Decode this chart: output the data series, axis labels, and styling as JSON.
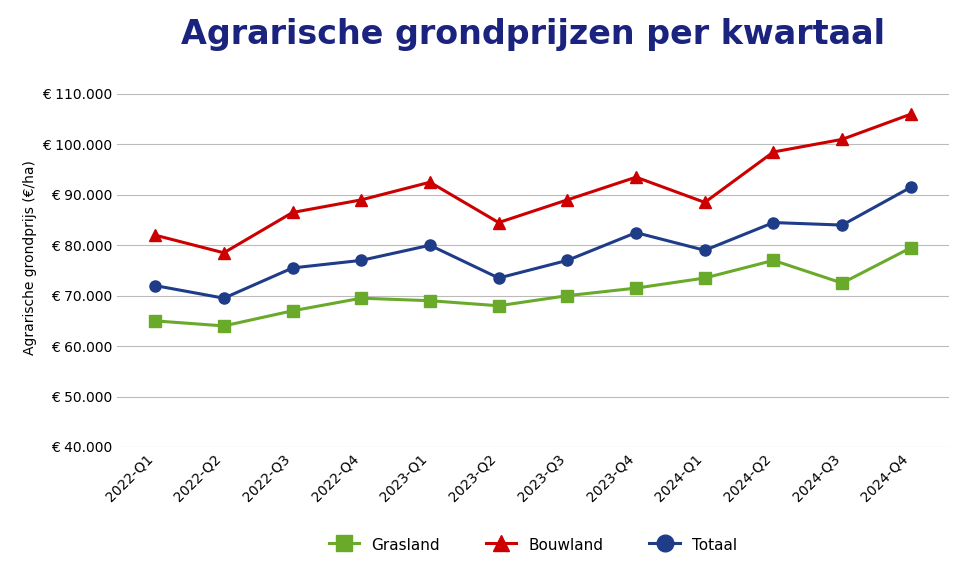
{
  "title": "Agrarische grondprijzen per kwartaal",
  "ylabel": "Agrarische grondprijs (€/ha)",
  "categories": [
    "2022-Q1",
    "2022-Q2",
    "2022-Q3",
    "2022-Q4",
    "2023-Q1",
    "2023-Q2",
    "2023-Q3",
    "2023-Q4",
    "2024-Q1",
    "2024-Q2",
    "2024-Q3",
    "2024-Q4"
  ],
  "grasland": [
    65000,
    64000,
    67000,
    69500,
    69000,
    68000,
    70000,
    71500,
    73500,
    77000,
    72500,
    79500
  ],
  "bouwland": [
    82000,
    78500,
    86500,
    89000,
    92500,
    84500,
    89000,
    93500,
    88500,
    98500,
    101000,
    106000
  ],
  "totaal": [
    72000,
    69500,
    75500,
    77000,
    80000,
    73500,
    77000,
    82500,
    79000,
    84500,
    84000,
    91500
  ],
  "grasland_color": "#6aaa2a",
  "bouwland_color": "#cc0000",
  "totaal_color": "#1f3c88",
  "ylim_min": 40000,
  "ylim_max": 115000,
  "ytick_step": 10000,
  "background_color": "#ffffff",
  "grid_color": "#bbbbbb",
  "title_color": "#1a237e",
  "title_fontsize": 24,
  "axis_label_fontsize": 10,
  "tick_fontsize": 10,
  "legend_fontsize": 11,
  "linewidth": 2.2,
  "markersize": 8
}
